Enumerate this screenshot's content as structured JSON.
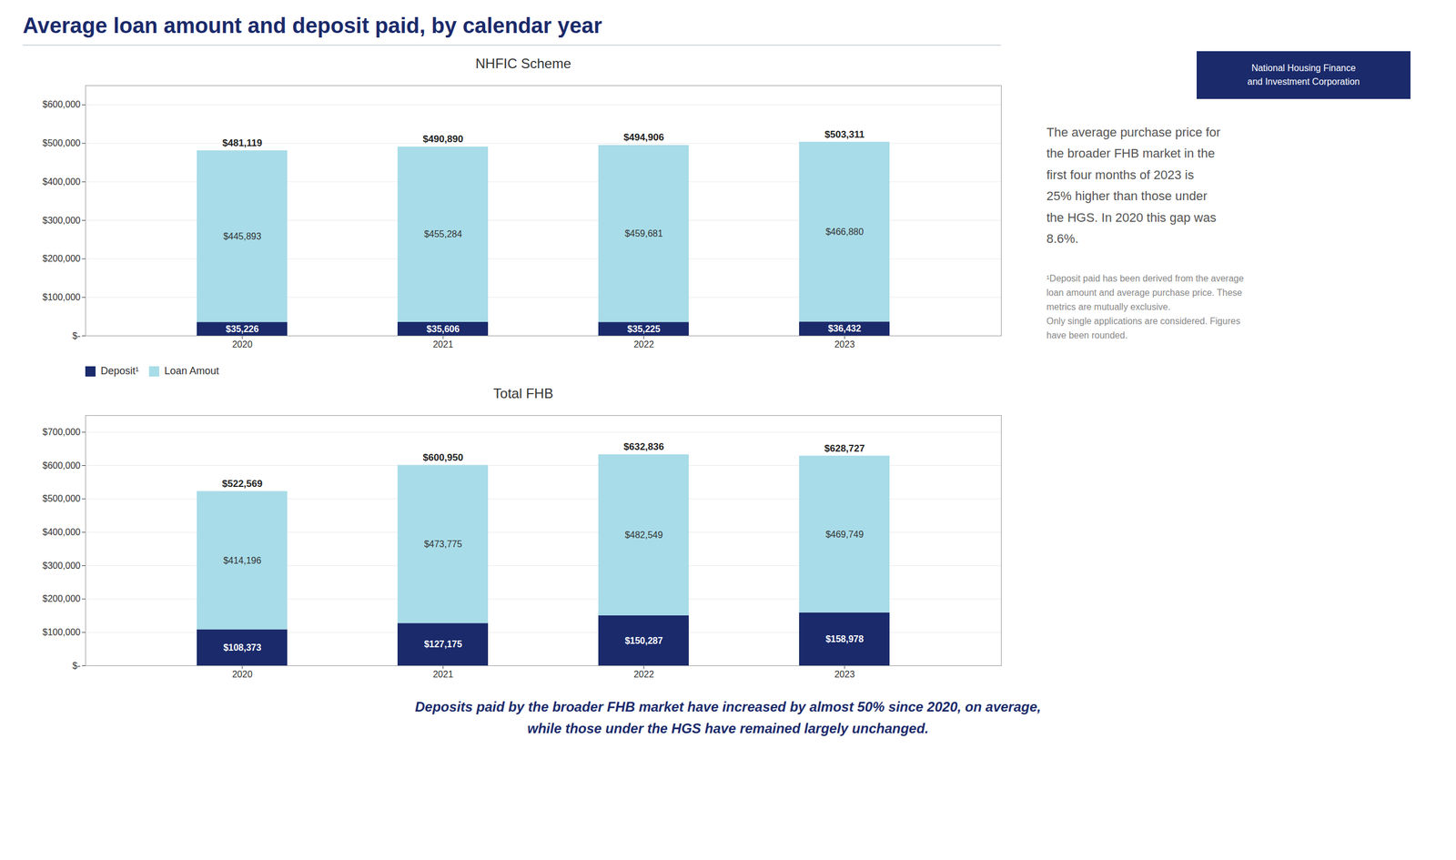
{
  "title": "Average loan amount and deposit paid, by calendar year",
  "title_color": "#1a2a6b",
  "annotations": [
    "The average purchase price for\nthe broader FHB market in the\nfirst four months of 2023 is\n25% higher than those under\nthe HGS. In 2020 this gap was\n8.6%.",
    "¹Deposit paid has been derived from the average\nloan amount and average purchase price. These\nmetrics are mutually exclusive.\nOnly single applications are considered. Figures\nhave been rounded."
  ],
  "logo_text": "National Housing Finance\nand Investment Corporation",
  "logo_color": "#1a2a6b",
  "caption": "Deposits paid by the broader FHB market have increased by almost 50% since 2020, on average,\nwhile those under the HGS have remained largely unchanged.",
  "chart_data": [
    {
      "type": "bar",
      "title": "NHFIC Scheme",
      "stacked": true,
      "grid": true,
      "data_labels": true,
      "categories": [
        "2020",
        "2021",
        "2022",
        "2023"
      ],
      "series": [
        {
          "name": "Deposit¹",
          "color": "#1a2a6b",
          "values": [
            35226,
            35606,
            35225,
            36432
          ],
          "value_labels": [
            "$35,226",
            "$35,606",
            "$35,225",
            "$36,432"
          ]
        },
        {
          "name": "Loan Amout",
          "color": "#a8dce8",
          "values": [
            445893,
            455284,
            459681,
            466880
          ],
          "value_labels": [
            "$445,893",
            "$455,284",
            "$459,681",
            "$466,880"
          ]
        }
      ],
      "totals": [
        481119,
        490890,
        494906,
        503311
      ],
      "total_labels": [
        "$481,119",
        "$490,890",
        "$494,906",
        "$503,311"
      ],
      "ylim": [
        0,
        650000
      ],
      "yticks": [
        {
          "value": 0,
          "label": "$-"
        },
        {
          "value": 100000,
          "label": "$100,000"
        },
        {
          "value": 200000,
          "label": "$200,000"
        },
        {
          "value": 300000,
          "label": "$300,000"
        },
        {
          "value": 400000,
          "label": "$400,000"
        },
        {
          "value": 500000,
          "label": "$500,000"
        },
        {
          "value": 600000,
          "label": "$600,000"
        }
      ]
    },
    {
      "type": "bar",
      "title": "Total FHB",
      "stacked": true,
      "grid": true,
      "data_labels": true,
      "categories": [
        "2020",
        "2021",
        "2022",
        "2023"
      ],
      "series": [
        {
          "name": "Deposit¹",
          "color": "#1a2a6b",
          "values": [
            108373,
            127175,
            150287,
            158978
          ],
          "value_labels": [
            "$108,373",
            "$127,175",
            "$150,287",
            "$158,978"
          ]
        },
        {
          "name": "Loan Amout",
          "color": "#a8dce8",
          "values": [
            414196,
            473775,
            482549,
            469749
          ],
          "value_labels": [
            "$414,196",
            "$473,775",
            "$482,549",
            "$469,749"
          ]
        }
      ],
      "totals": [
        522569,
        600950,
        632836,
        628727
      ],
      "total_labels": [
        "$522,569",
        "$600,950",
        "$632,836",
        "$628,727"
      ],
      "ylim": [
        0,
        750000
      ],
      "yticks": [
        {
          "value": 0,
          "label": "$-"
        },
        {
          "value": 100000,
          "label": "$100,000"
        },
        {
          "value": 200000,
          "label": "$200,000"
        },
        {
          "value": 300000,
          "label": "$300,000"
        },
        {
          "value": 400000,
          "label": "$400,000"
        },
        {
          "value": 500000,
          "label": "$500,000"
        },
        {
          "value": 600000,
          "label": "$600,000"
        },
        {
          "value": 700000,
          "label": "$700,000"
        }
      ]
    }
  ]
}
